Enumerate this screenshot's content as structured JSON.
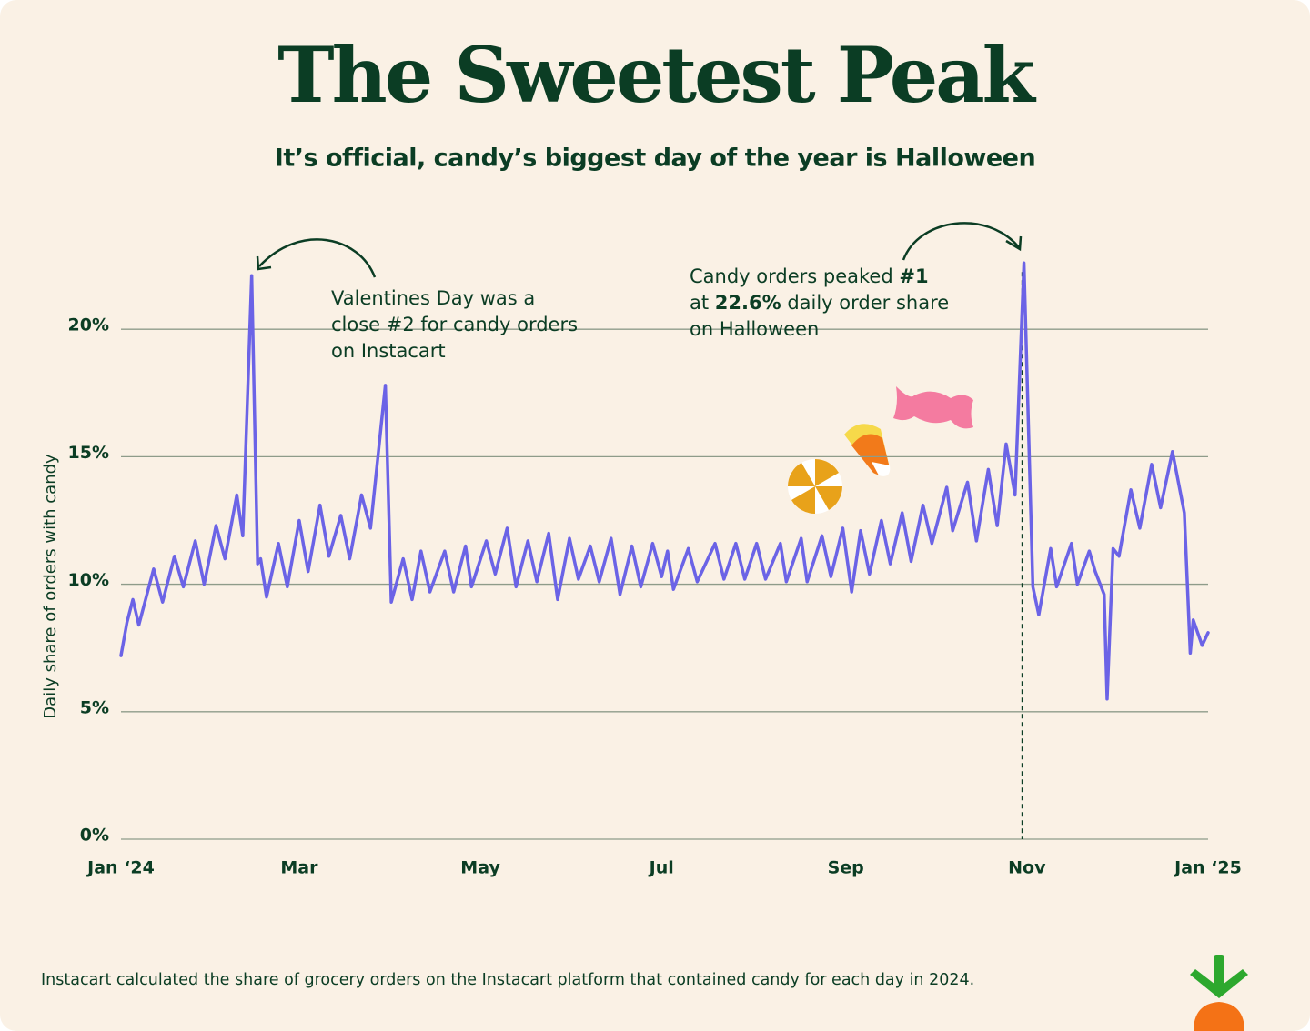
{
  "chart_data": {
    "type": "line",
    "title": "The Sweetest Peak",
    "subtitle": "It’s official, candy’s biggest day of the year is Halloween",
    "y_label": "Daily share of orders with candy",
    "footnote": "Instacart calculated the share of grocery orders on the Instacart platform that contained candy for each day in 2024.",
    "annotations": [
      {
        "lines": [
          [
            "Valentines Day was a"
          ],
          [
            "close #2 for candy orders"
          ],
          [
            "on Instacart"
          ]
        ]
      },
      {
        "lines": [
          [
            "Candy orders peaked ",
            "#1"
          ],
          [
            "at ",
            "22.6%",
            " daily order share"
          ],
          [
            "on Halloween"
          ]
        ]
      }
    ],
    "x": [
      0,
      2,
      4,
      6,
      11,
      14,
      18,
      21,
      25,
      28,
      32,
      35,
      39,
      41,
      44,
      46,
      47,
      49,
      53,
      56,
      60,
      63,
      67,
      70,
      74,
      77,
      81,
      84,
      89,
      91,
      95,
      98,
      101,
      104,
      109,
      112,
      116,
      118,
      123,
      126,
      130,
      133,
      137,
      140,
      144,
      147,
      151,
      154,
      158,
      161,
      165,
      168,
      172,
      175,
      179,
      182,
      184,
      186,
      191,
      194,
      200,
      203,
      207,
      210,
      214,
      217,
      222,
      224,
      229,
      231,
      236,
      239,
      243,
      246,
      249,
      252,
      256,
      259,
      263,
      266,
      270,
      273,
      278,
      280,
      285,
      288,
      292,
      295,
      298,
      301,
      304,
      307,
      309,
      313,
      315,
      320,
      322,
      326,
      328,
      331,
      332,
      334,
      336,
      340,
      343,
      347,
      350,
      354,
      358,
      360,
      361,
      364,
      366
    ],
    "series": [
      {
        "name": "Daily share of orders with candy",
        "color": "#6b63e6",
        "values": [
          7.2,
          8.5,
          9.4,
          8.4,
          10.6,
          9.3,
          11.1,
          9.9,
          11.7,
          10,
          12.3,
          11,
          13.5,
          11.9,
          22.1,
          10.8,
          11,
          9.5,
          11.6,
          9.9,
          12.5,
          10.5,
          13.1,
          11.1,
          12.7,
          11,
          13.5,
          12.2,
          17.8,
          9.3,
          11,
          9.4,
          11.3,
          9.7,
          11.3,
          9.7,
          11.5,
          9.9,
          11.7,
          10.4,
          12.2,
          9.9,
          11.7,
          10.1,
          12,
          9.4,
          11.8,
          10.2,
          11.5,
          10.1,
          11.8,
          9.6,
          11.5,
          9.9,
          11.6,
          10.3,
          11.3,
          9.8,
          11.4,
          10.1,
          11.6,
          10.2,
          11.6,
          10.2,
          11.6,
          10.2,
          11.6,
          10.1,
          11.8,
          10.1,
          11.9,
          10.3,
          12.2,
          9.7,
          12.1,
          10.4,
          12.5,
          10.8,
          12.8,
          10.9,
          13.1,
          11.6,
          13.8,
          12.1,
          14,
          11.7,
          14.5,
          12.3,
          15.5,
          13.5,
          22.6,
          9.9,
          8.8,
          11.4,
          9.9,
          11.6,
          10,
          11.3,
          10.5,
          9.6,
          5.5,
          11.4,
          11.1,
          13.7,
          12.2,
          14.7,
          13,
          15.2,
          12.8,
          7.3,
          8.6,
          7.6,
          8.1
        ]
      }
    ],
    "xlim": [
      0,
      366
    ],
    "xticks": [
      {
        "value": 0,
        "label": "Jan ‘24"
      },
      {
        "value": 60,
        "label": "Mar"
      },
      {
        "value": 121,
        "label": "May"
      },
      {
        "value": 182,
        "label": "Jul"
      },
      {
        "value": 244,
        "label": "Sep"
      },
      {
        "value": 305,
        "label": "Nov"
      },
      {
        "value": 366,
        "label": "Jan ‘25"
      }
    ],
    "ylim": [
      0,
      24
    ],
    "yticks": [
      {
        "value": 0,
        "label": "0%"
      },
      {
        "value": 5,
        "label": "5%"
      },
      {
        "value": 10,
        "label": "10%"
      },
      {
        "value": 15,
        "label": "15%"
      },
      {
        "value": 20,
        "label": "20%"
      }
    ],
    "grid": true,
    "grid_color": "#8e9c8a"
  }
}
